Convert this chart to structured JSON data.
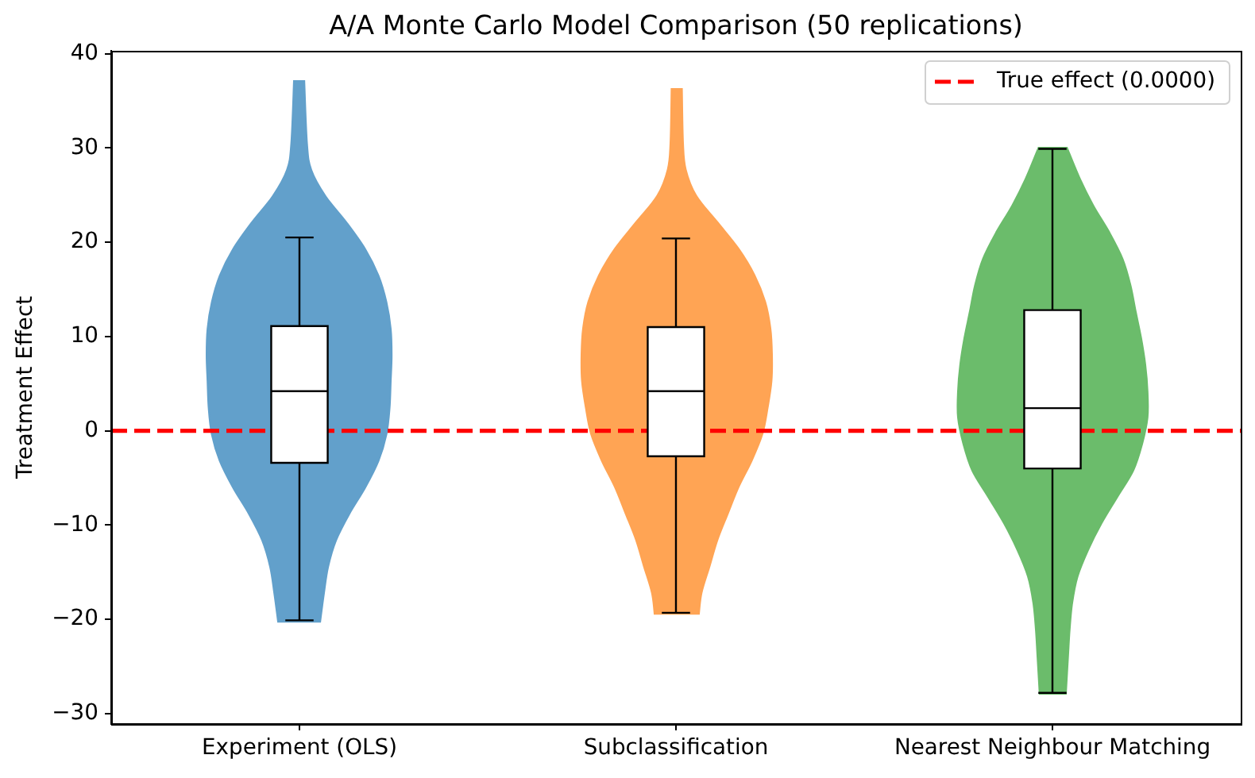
{
  "chart_data": {
    "type": "box",
    "title": "A/A Monte Carlo Model Comparison (50 replications)",
    "ylabel": "Treatment Effect",
    "categories": [
      "Experiment (OLS)",
      "Subclassification",
      "Nearest Neighbour Matching"
    ],
    "ylim": [
      -31.1,
      40.3
    ],
    "yticks": [
      -30,
      -20,
      -10,
      0,
      10,
      20,
      30,
      40
    ],
    "boxes": [
      {
        "low": -20.1,
        "q1": -3.4,
        "median": 4.2,
        "q3": 11.1,
        "high": 20.5
      },
      {
        "low": -19.3,
        "q1": -2.7,
        "median": 4.2,
        "q3": 11.0,
        "high": 20.4
      },
      {
        "low": -27.8,
        "q1": -4.0,
        "median": 2.4,
        "q3": 12.8,
        "high": 29.9
      }
    ],
    "ref_lines": [
      {
        "axis": "y",
        "value": 0,
        "label": "True effect (0.0000)",
        "color": "#ff0000",
        "line_style": "dashed"
      }
    ],
    "legend": "top right"
  }
}
